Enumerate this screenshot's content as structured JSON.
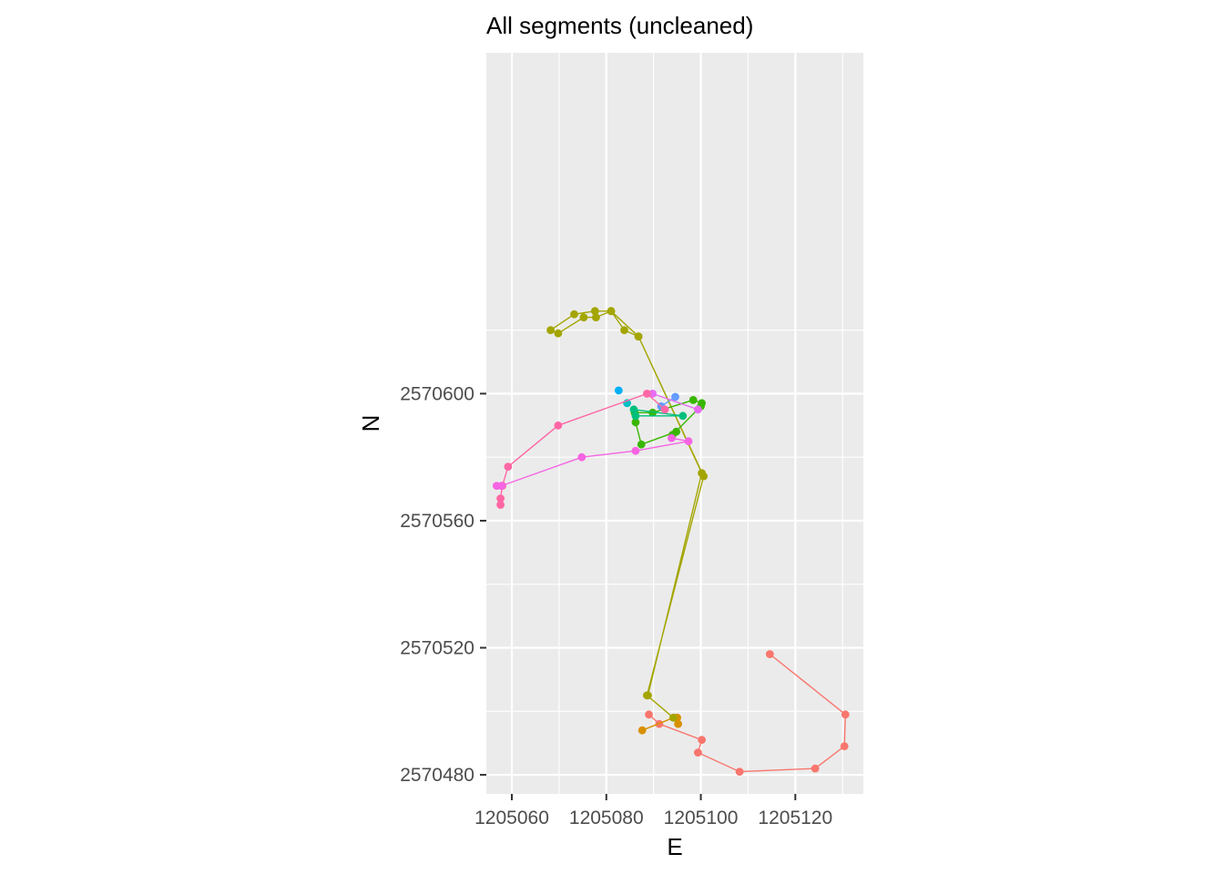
{
  "chart_data": {
    "type": "scatter",
    "title": "All segments (uncleaned)",
    "xlabel": "E",
    "ylabel": "N",
    "xlim": [
      1205054.6,
      1205134.4
    ],
    "ylim": [
      2570474.0,
      2570707.3
    ],
    "x_major_ticks": [
      1205060,
      1205080,
      1205100,
      1205120
    ],
    "y_major_ticks": [
      2570480,
      2570520,
      2570560,
      2570600
    ],
    "x_minor_ticks": [
      1205070,
      1205090,
      1205110,
      1205130
    ],
    "y_minor_ticks": [
      2570500,
      2570540,
      2570580,
      2570620
    ],
    "x_tick_labels": [
      "1205060",
      "1205080",
      "1205100",
      "1205120"
    ],
    "y_tick_labels": [
      "2570480",
      "2570520",
      "2570560",
      "2570600"
    ],
    "grid": true,
    "legend": "none",
    "background": "#ebebeb",
    "series": [
      {
        "color": "#F8766D",
        "x": [
          1205114.6,
          1205130.6,
          1205130.4,
          1205124.2,
          1205108.2,
          1205099.4,
          1205100.2,
          1205091.2,
          1205089.0
        ],
        "y": [
          2570518,
          2570499,
          2570489,
          2570482,
          2570481,
          2570487,
          2570491,
          2570496,
          2570499
        ]
      },
      {
        "color": "#D89000",
        "x": [
          1205087.6,
          1205094.2,
          1205095.0,
          1205095.2
        ],
        "y": [
          2570494,
          2570498,
          2570498,
          2570496
        ]
      },
      {
        "color": "#A3A500",
        "x": [
          1205094.2,
          1205088.6,
          1205100.6,
          1205086.8,
          1205083.8,
          1205081.0,
          1205077.6,
          1205073.2,
          1205068.2,
          1205069.8,
          1205075.2,
          1205077.8,
          1205081.0,
          1205086.8,
          1205100.2,
          1205088.8
        ],
        "y": [
          2570498,
          2570505,
          2570574,
          2570618,
          2570620,
          2570626,
          2570626,
          2570625,
          2570620,
          2570619,
          2570624,
          2570624,
          2570626,
          2570618,
          2570575,
          2570505
        ]
      },
      {
        "color": "#39B600",
        "x": [
          1205094.8,
          1205087.4,
          1205086.2,
          1205086.0,
          1205089.8,
          1205098.4,
          1205100.2,
          1205100.0,
          1205094.0
        ],
        "y": [
          2570588,
          2570584,
          2570591,
          2570594,
          2570594,
          2570598,
          2570597,
          2570596,
          2570587
        ]
      },
      {
        "color": "#00BF7D",
        "x": [
          1205085.8,
          1205096.2,
          1205086.2
        ],
        "y": [
          2570595,
          2570593,
          2570593
        ]
      },
      {
        "color": "#00BFC4",
        "x": [
          1205084.4
        ],
        "y": [
          2570597
        ]
      },
      {
        "color": "#00B0F6",
        "x": [
          1205082.6
        ],
        "y": [
          2570601
        ]
      },
      {
        "color": "#619CFF",
        "x": [
          1205094.6,
          1205091.6
        ],
        "y": [
          2570599,
          2570596
        ]
      },
      {
        "color": "#E76BF3",
        "x": [
          1205099.4,
          1205089.8
        ],
        "y": [
          2570595,
          2570600
        ]
      },
      {
        "color": "#FF67A4",
        "x": [
          1205092.4,
          1205088.6,
          1205069.8,
          1205059.2,
          1205058.0,
          1205057.6,
          1205057.6
        ],
        "y": [
          2570595,
          2570600,
          2570590,
          2570577,
          2570571,
          2570567,
          2570565
        ]
      },
      {
        "color": "#F564E3",
        "x": [
          1205056.8,
          1205057.8,
          1205074.8,
          1205086.2,
          1205097.4,
          1205093.8
        ],
        "y": [
          2570571,
          2570571,
          2570580,
          2570582,
          2570585,
          2570586
        ]
      }
    ]
  }
}
